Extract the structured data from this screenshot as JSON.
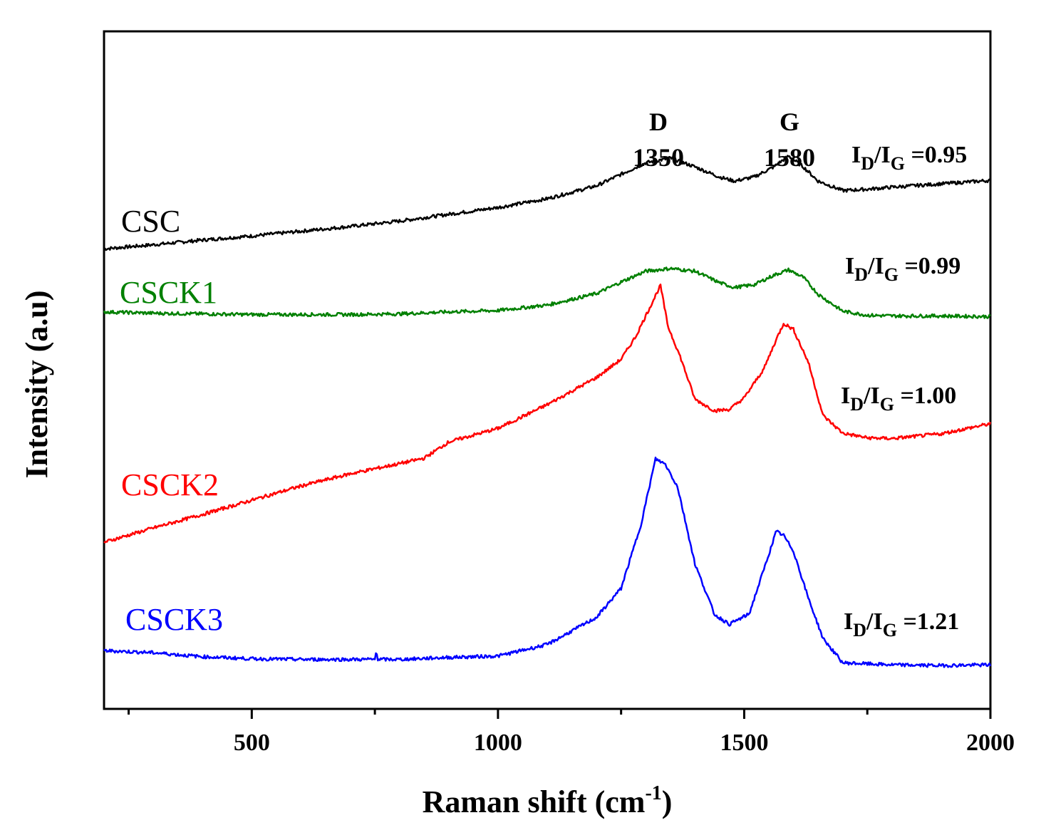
{
  "chart_data": {
    "type": "line",
    "title": "",
    "xlabel_main": "Raman shift (cm",
    "xlabel_sup": "-1",
    "xlabel_close": ")",
    "ylabel": "Intensity (a.u)",
    "xlim": [
      200,
      2000
    ],
    "ylim": [
      0,
      100
    ],
    "x_ticks": [
      500,
      1000,
      1500,
      2000
    ],
    "x_tick_labels": [
      "500",
      "1000",
      "1500",
      "2000"
    ],
    "x_minor_ticks": [
      250,
      750,
      1250,
      1750
    ],
    "y_ticks_shown": false,
    "peaks": [
      {
        "letter": "D",
        "position_label": "1350",
        "x": 1350
      },
      {
        "letter": "G",
        "position_label": "1580",
        "x": 1580
      }
    ],
    "ratio_prefix": "I",
    "ratio_sub_1": "D",
    "ratio_slash": "/I",
    "ratio_sub_2": "G",
    "series": [
      {
        "name": "CSC",
        "color": "#000000",
        "ratio_value": " =0.95",
        "points": [
          [
            200,
            67.9
          ],
          [
            300,
            68.5
          ],
          [
            400,
            69.2
          ],
          [
            500,
            69.8
          ],
          [
            600,
            70.5
          ],
          [
            700,
            71.2
          ],
          [
            800,
            72.0
          ],
          [
            900,
            73.0
          ],
          [
            1000,
            74.0
          ],
          [
            1100,
            75.3
          ],
          [
            1200,
            77.2
          ],
          [
            1250,
            78.9
          ],
          [
            1300,
            80.6
          ],
          [
            1350,
            81.3
          ],
          [
            1400,
            80.0
          ],
          [
            1450,
            78.5
          ],
          [
            1480,
            77.9
          ],
          [
            1520,
            78.5
          ],
          [
            1560,
            80.0
          ],
          [
            1590,
            81.6
          ],
          [
            1620,
            80.0
          ],
          [
            1650,
            77.9
          ],
          [
            1700,
            76.5
          ],
          [
            1750,
            76.7
          ],
          [
            1800,
            77.0
          ],
          [
            1900,
            77.5
          ],
          [
            2000,
            78.0
          ]
        ]
      },
      {
        "name": "CSCK1",
        "color": "#008000",
        "ratio_value": " =0.99",
        "points": [
          [
            200,
            58.6
          ],
          [
            300,
            58.4
          ],
          [
            400,
            58.3
          ],
          [
            500,
            58.2
          ],
          [
            600,
            58.2
          ],
          [
            700,
            58.2
          ],
          [
            800,
            58.3
          ],
          [
            900,
            58.6
          ],
          [
            1000,
            58.8
          ],
          [
            1100,
            59.6
          ],
          [
            1200,
            61.3
          ],
          [
            1250,
            63.0
          ],
          [
            1300,
            64.6
          ],
          [
            1350,
            65.0
          ],
          [
            1400,
            64.6
          ],
          [
            1450,
            62.9
          ],
          [
            1480,
            62.2
          ],
          [
            1520,
            62.6
          ],
          [
            1560,
            64.0
          ],
          [
            1590,
            64.8
          ],
          [
            1620,
            63.7
          ],
          [
            1650,
            61.2
          ],
          [
            1700,
            58.7
          ],
          [
            1750,
            58.1
          ],
          [
            1800,
            58.0
          ],
          [
            1900,
            58.0
          ],
          [
            2000,
            57.9
          ]
        ]
      },
      {
        "name": "CSCK2",
        "color": "#ff0000",
        "ratio_value": " =1.00",
        "points": [
          [
            200,
            24.6
          ],
          [
            300,
            26.7
          ],
          [
            400,
            28.7
          ],
          [
            500,
            30.8
          ],
          [
            600,
            32.9
          ],
          [
            700,
            34.7
          ],
          [
            800,
            36.2
          ],
          [
            850,
            37.0
          ],
          [
            900,
            39.4
          ],
          [
            1000,
            41.4
          ],
          [
            1100,
            44.9
          ],
          [
            1200,
            48.9
          ],
          [
            1250,
            51.6
          ],
          [
            1280,
            55.0
          ],
          [
            1310,
            59.5
          ],
          [
            1330,
            62.5
          ],
          [
            1345,
            56.5
          ],
          [
            1370,
            52.0
          ],
          [
            1400,
            45.7
          ],
          [
            1440,
            44.0
          ],
          [
            1470,
            44.2
          ],
          [
            1500,
            45.9
          ],
          [
            1540,
            50.2
          ],
          [
            1565,
            54.5
          ],
          [
            1580,
            56.9
          ],
          [
            1600,
            56.0
          ],
          [
            1630,
            51.2
          ],
          [
            1660,
            43.3
          ],
          [
            1700,
            40.7
          ],
          [
            1750,
            40.0
          ],
          [
            1800,
            39.9
          ],
          [
            1900,
            40.6
          ],
          [
            2000,
            42.1
          ]
        ]
      },
      {
        "name": "CSCK3",
        "color": "#0000ff",
        "ratio_value": " =1.21",
        "points": [
          [
            200,
            8.6
          ],
          [
            300,
            8.3
          ],
          [
            400,
            7.7
          ],
          [
            500,
            7.4
          ],
          [
            600,
            7.3
          ],
          [
            700,
            7.3
          ],
          [
            750,
            7.3
          ],
          [
            753,
            8.8
          ],
          [
            756,
            7.3
          ],
          [
            800,
            7.3
          ],
          [
            900,
            7.6
          ],
          [
            1000,
            7.8
          ],
          [
            1100,
            9.5
          ],
          [
            1200,
            13.5
          ],
          [
            1250,
            17.8
          ],
          [
            1290,
            27.1
          ],
          [
            1320,
            36.9
          ],
          [
            1340,
            36.1
          ],
          [
            1365,
            32.7
          ],
          [
            1400,
            21.4
          ],
          [
            1440,
            13.9
          ],
          [
            1470,
            12.5
          ],
          [
            1510,
            14.0
          ],
          [
            1545,
            21.7
          ],
          [
            1565,
            26.2
          ],
          [
            1580,
            25.6
          ],
          [
            1600,
            23.3
          ],
          [
            1630,
            16.4
          ],
          [
            1660,
            10.4
          ],
          [
            1700,
            6.8
          ],
          [
            1800,
            6.5
          ],
          [
            1900,
            6.4
          ],
          [
            2000,
            6.5
          ]
        ]
      }
    ]
  }
}
